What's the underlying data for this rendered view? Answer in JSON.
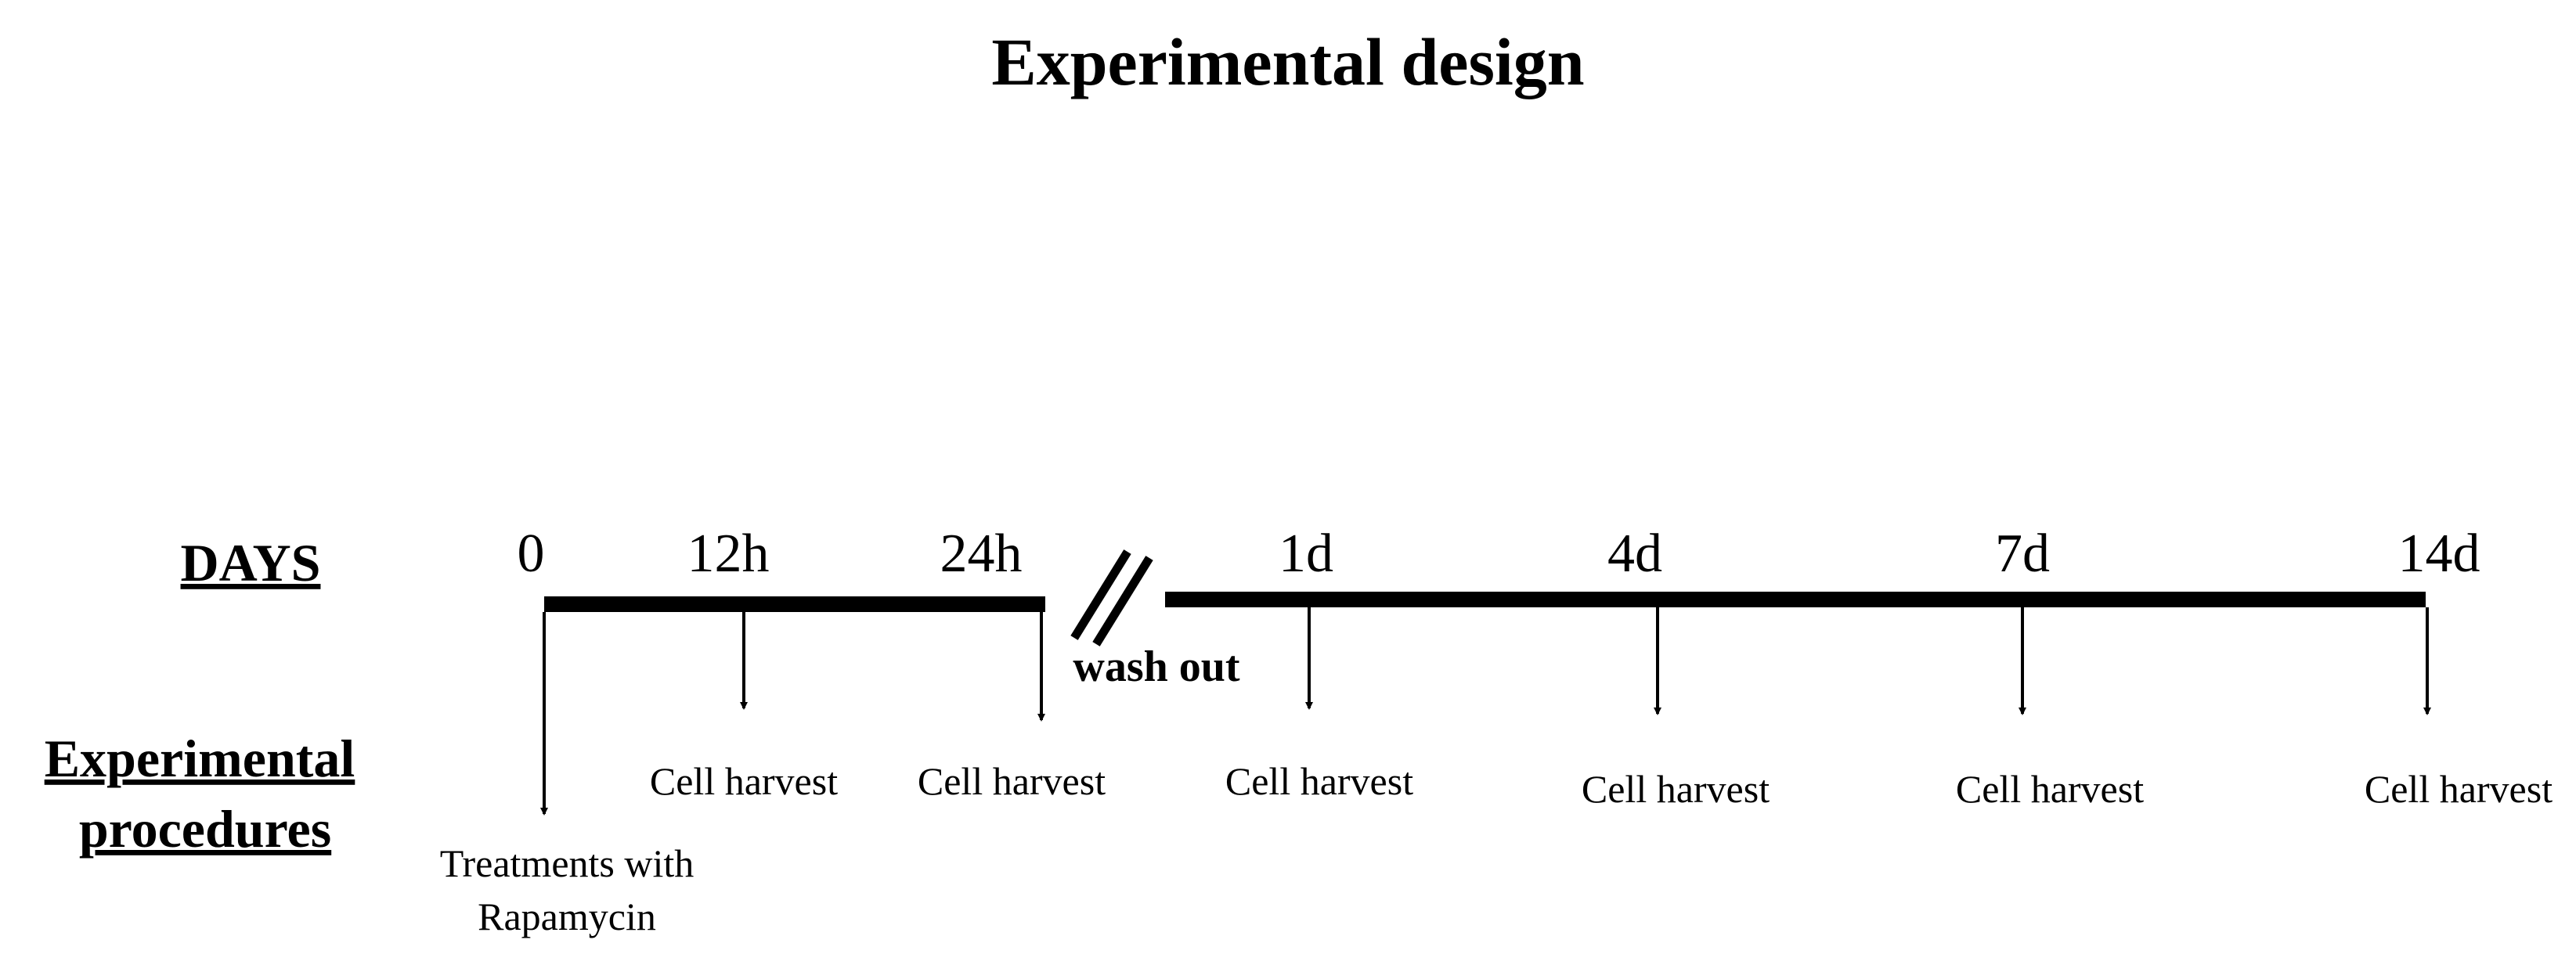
{
  "title": "Experimental design",
  "labels": {
    "days": "DAYS",
    "procedures_line1": "Experimental",
    "procedures_line2": "procedures"
  },
  "timepoints": {
    "t0": "0",
    "t12h": "12h",
    "t24h": "24h",
    "t1d": "1d",
    "t4d": "4d",
    "t7d": "7d",
    "t14d": "14d"
  },
  "procedures": {
    "treatment_line1": "Treatments with",
    "treatment_line2": "Rapamycin",
    "harvest_12h": "Cell harvest",
    "harvest_24h": "Cell harvest",
    "harvest_1d": "Cell harvest",
    "harvest_4d": "Cell harvest",
    "harvest_7d": "Cell harvest",
    "harvest_14d": "Cell harvest"
  },
  "washout": "wash out",
  "colors": {
    "ink": "#000000",
    "background": "#ffffff"
  }
}
